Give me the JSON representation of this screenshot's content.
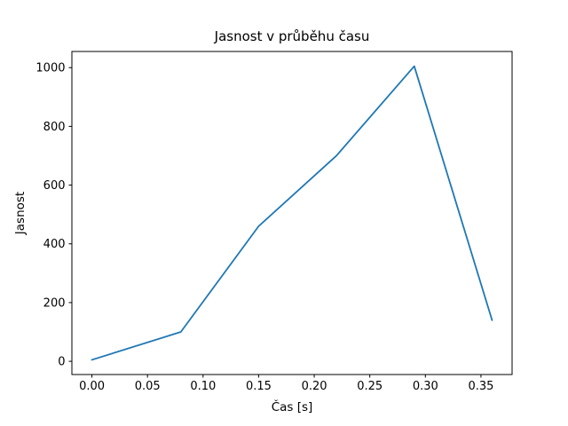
{
  "chart_data": {
    "type": "line",
    "title": "Jasnost v průběhu času",
    "xlabel": "Čas [s]",
    "ylabel": "Jasnost",
    "x": [
      0.0,
      0.08,
      0.15,
      0.22,
      0.29,
      0.36
    ],
    "y": [
      5,
      100,
      460,
      700,
      1005,
      140
    ],
    "xlim": [
      -0.018,
      0.378
    ],
    "ylim": [
      -45,
      1055
    ],
    "xticks": [
      0.0,
      0.05,
      0.1,
      0.15,
      0.2,
      0.25,
      0.3,
      0.35
    ],
    "xtick_labels": [
      "0.00",
      "0.05",
      "0.10",
      "0.15",
      "0.20",
      "0.25",
      "0.30",
      "0.35"
    ],
    "yticks": [
      0,
      200,
      400,
      600,
      800,
      1000
    ],
    "ytick_labels": [
      "0",
      "200",
      "400",
      "600",
      "800",
      "1000"
    ],
    "line_color": "#1f77b4",
    "spine_color": "#000000",
    "background_color": "#ffffff",
    "grid": false,
    "legend_position": "none"
  }
}
